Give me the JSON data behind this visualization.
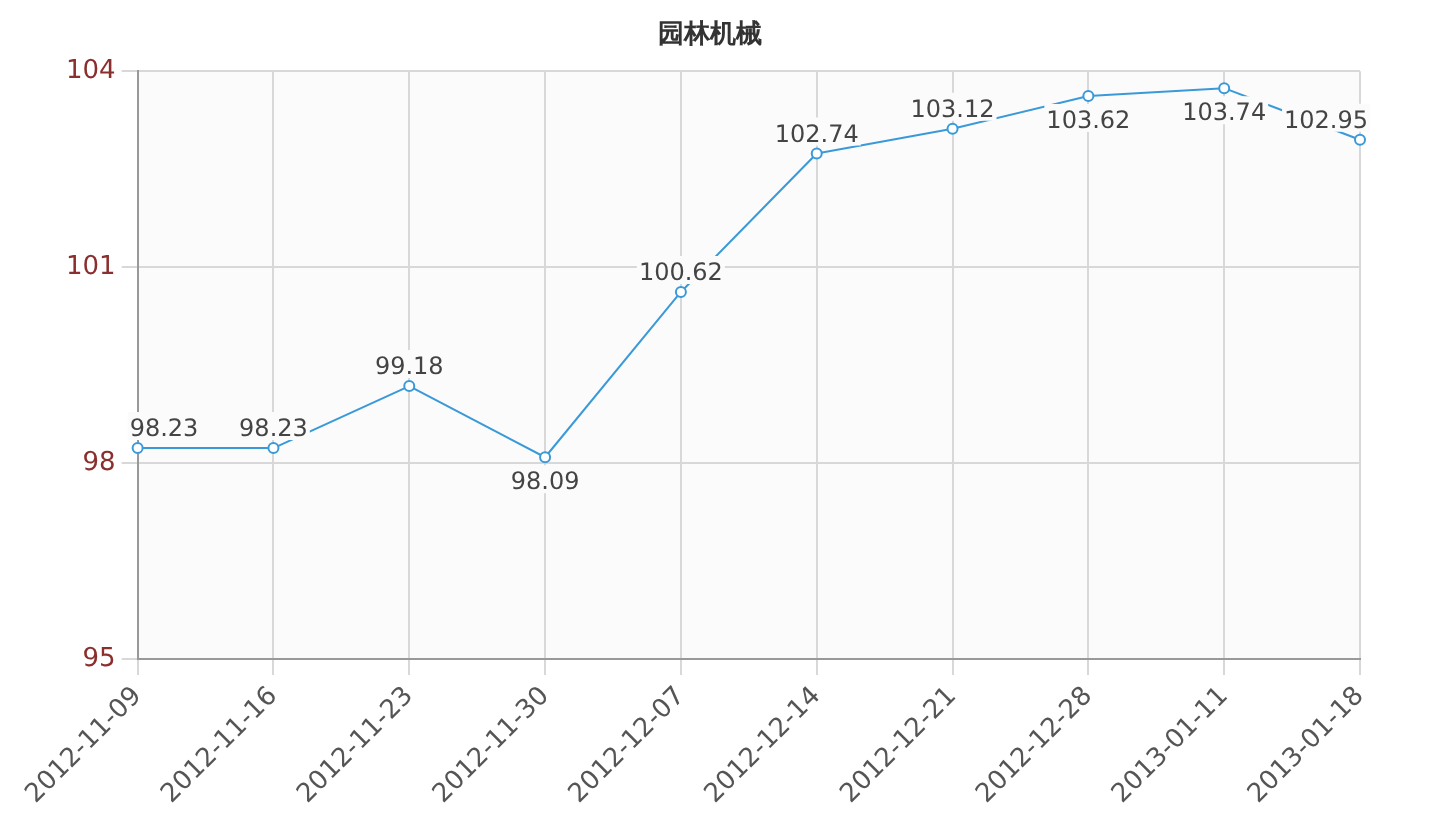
{
  "chart_data": {
    "type": "line",
    "title": "园林机械",
    "categories": [
      "2012-11-09",
      "2012-11-16",
      "2012-11-23",
      "2012-11-30",
      "2012-12-07",
      "2012-12-14",
      "2012-12-21",
      "2012-12-28",
      "2013-01-11",
      "2013-01-18"
    ],
    "series": [
      {
        "color": "#3a9ad9",
        "values": [
          98.23,
          98.23,
          99.18,
          98.09,
          100.62,
          102.74,
          103.12,
          103.62,
          103.74,
          102.95
        ]
      }
    ],
    "ylim": [
      95,
      104
    ],
    "yticks": [
      95,
      98,
      101,
      104
    ],
    "grid": true,
    "marker": "circle",
    "data_labels": true,
    "legend": false
  }
}
